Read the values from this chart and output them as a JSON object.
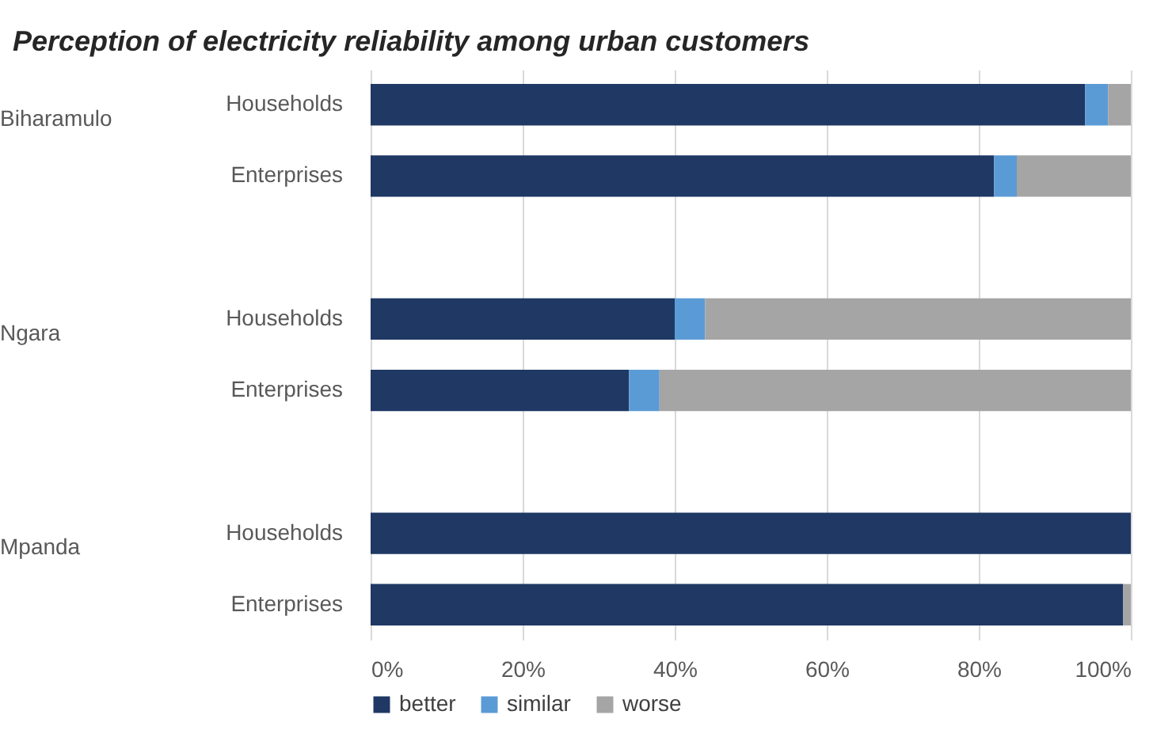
{
  "chart_data": {
    "type": "bar",
    "orientation": "horizontal",
    "stacked": true,
    "title": "Perception of electricity reliability among urban customers",
    "categories": [
      "Households",
      "Enterprises",
      null,
      "Households",
      "Enterprises",
      null,
      "Households",
      "Enterprises"
    ],
    "annotations": [
      "Biharamulo",
      "Ngara",
      "Mpanda"
    ],
    "series": [
      {
        "name": "better",
        "color": "#1f3864",
        "values": [
          94,
          82,
          null,
          40,
          34,
          null,
          100,
          99
        ]
      },
      {
        "name": "similar",
        "color": "#5b9bd5",
        "values": [
          3,
          3,
          null,
          4,
          4,
          null,
          0,
          0
        ]
      },
      {
        "name": "worse",
        "color": "#a5a5a5",
        "values": [
          3,
          15,
          null,
          56,
          62,
          null,
          0,
          1
        ]
      }
    ],
    "xlim": [
      0,
      100
    ],
    "xticks": [
      {
        "value": 0,
        "label": "0%"
      },
      {
        "value": 20,
        "label": "20%"
      },
      {
        "value": 40,
        "label": "40%"
      },
      {
        "value": 60,
        "label": "60%"
      },
      {
        "value": 80,
        "label": "80%"
      },
      {
        "value": 100,
        "label": "100%"
      }
    ],
    "grid": "x",
    "legend": "bottom"
  }
}
